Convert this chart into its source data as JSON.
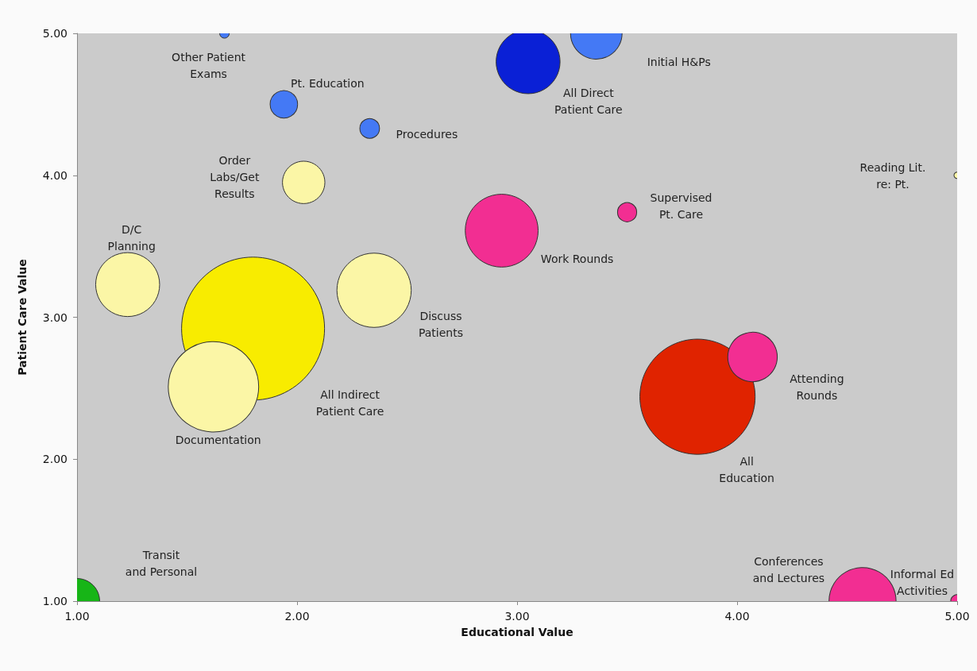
{
  "chart_data": {
    "type": "bubble",
    "xlabel": "Educational Value",
    "ylabel": "Patient Care Value",
    "xlim": [
      1,
      5
    ],
    "ylim": [
      1,
      5
    ],
    "xticks": [
      {
        "value": 1,
        "label": "1.00"
      },
      {
        "value": 2,
        "label": "2.00"
      },
      {
        "value": 3,
        "label": "3.00"
      },
      {
        "value": 4,
        "label": "4.00"
      },
      {
        "value": 5,
        "label": "5.00"
      }
    ],
    "yticks": [
      {
        "value": 1,
        "label": "1.00"
      },
      {
        "value": 2,
        "label": "2.00"
      },
      {
        "value": 3,
        "label": "3.00"
      },
      {
        "value": 4,
        "label": "4.00"
      },
      {
        "value": 5,
        "label": "5.00"
      }
    ],
    "grid": false,
    "legend": false,
    "series": [
      {
        "name": "Other Patient\nExams",
        "color": "#4479f5",
        "x": [
          1.67
        ],
        "values": [
          5.0
        ],
        "sizes": [
          0.0045
        ]
      },
      {
        "name": "Pt. Education",
        "color": "#4479f5",
        "x": [
          1.94
        ],
        "values": [
          4.5
        ],
        "sizes": [
          0.037
        ]
      },
      {
        "name": "Procedures",
        "color": "#4479f5",
        "x": [
          2.33
        ],
        "values": [
          4.33
        ],
        "sizes": [
          0.019
        ]
      },
      {
        "name": "Order\nLabs/Get\nResults",
        "color": "#fbf6a6",
        "x": [
          2.03
        ],
        "values": [
          3.95
        ],
        "sizes": [
          0.088
        ]
      },
      {
        "name": "D/C\nPlanning",
        "color": "#fbf6a6",
        "x": [
          1.23
        ],
        "values": [
          3.23
        ],
        "sizes": [
          0.2
        ]
      },
      {
        "name": "All Indirect\nPatient Care",
        "color": "#f8ec00",
        "x": [
          1.8
        ],
        "values": [
          2.92
        ],
        "sizes": [
          1
        ]
      },
      {
        "name": "Discuss\nPatients",
        "color": "#fbf6a6",
        "x": [
          2.35
        ],
        "values": [
          3.19
        ],
        "sizes": [
          0.27
        ]
      },
      {
        "name": "Work Rounds",
        "color": "#f22e92",
        "x": [
          2.93
        ],
        "values": [
          3.61
        ],
        "sizes": [
          0.26
        ]
      },
      {
        "name": "All Direct\nPatient Care",
        "color": "#0a20d6",
        "x": [
          3.05
        ],
        "values": [
          4.8
        ],
        "sizes": [
          0.2
        ]
      },
      {
        "name": "Initial H&Ps",
        "color": "#4479f5",
        "x": [
          3.36
        ],
        "values": [
          5.0
        ],
        "sizes": [
          0.13
        ]
      },
      {
        "name": "Supervised\nPt. Care",
        "color": "#f22e92",
        "x": [
          3.5
        ],
        "values": [
          3.74
        ],
        "sizes": [
          0.018
        ]
      },
      {
        "name": "Reading Lit.\nre: Pt.",
        "color": "#fbf6a6",
        "x": [
          5.0
        ],
        "values": [
          4.0
        ],
        "sizes": [
          0.002
        ]
      },
      {
        "name": "Documentation",
        "color": "#fbf6a6",
        "x": [
          1.62
        ],
        "values": [
          2.51
        ],
        "sizes": [
          0.4
        ]
      },
      {
        "name": "Transit\nand Personal",
        "color": "#17b517",
        "x": [
          1.0
        ],
        "values": [
          1.0
        ],
        "sizes": [
          0.1
        ]
      },
      {
        "name": "All\nEducation",
        "color": "#e02300",
        "x": [
          3.82
        ],
        "values": [
          2.44
        ],
        "sizes": [
          0.65
        ]
      },
      {
        "name": "Attending\nRounds",
        "color": "#f22e92",
        "x": [
          4.07
        ],
        "values": [
          2.72
        ],
        "sizes": [
          0.12
        ]
      },
      {
        "name": "Conferences\nand Lectures",
        "color": "#f22e92",
        "x": [
          4.57
        ],
        "values": [
          1.0
        ],
        "sizes": [
          0.22
        ]
      },
      {
        "name": "Informal Ed\nActivities",
        "color": "#f22e92",
        "x": [
          5.0
        ],
        "values": [
          1.0
        ],
        "sizes": [
          0.008
        ]
      }
    ]
  }
}
